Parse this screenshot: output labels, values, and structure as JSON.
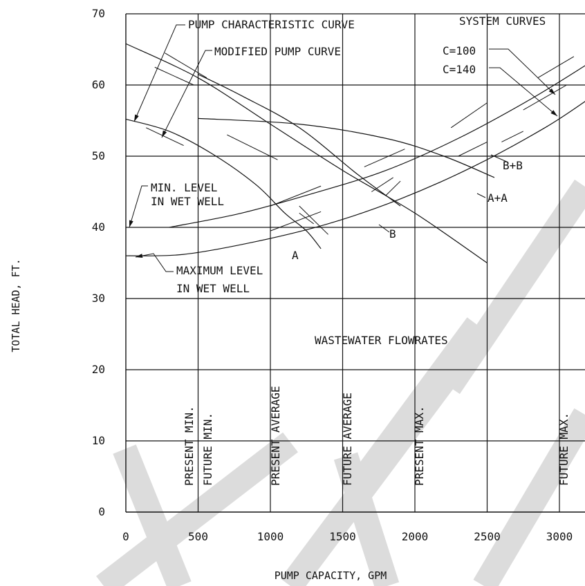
{
  "chart_data": {
    "type": "line",
    "xlabel": "PUMP CAPACITY,   GPM",
    "ylabel": "TOTAL HEAD,   FT.",
    "xlim": [
      0,
      3200
    ],
    "ylim": [
      0,
      70
    ],
    "x_ticks": [
      "0",
      "500",
      "1000",
      "1500",
      "2000",
      "2500",
      "3000"
    ],
    "y_ticks": [
      "0",
      "10",
      "20",
      "30",
      "40",
      "50",
      "60",
      "70"
    ],
    "grid": true,
    "series": [
      {
        "name": "A",
        "x": [
          0,
          300,
          600,
          900,
          1100,
          1250,
          1350
        ],
        "y": [
          55.2,
          53.5,
          50.3,
          46,
          42,
          39.5,
          37
        ]
      },
      {
        "name": "A+A",
        "x": [
          0,
          500,
          1000,
          1500,
          2000,
          2500
        ],
        "y": [
          65.8,
          61,
          54.5,
          48,
          42,
          35
        ]
      },
      {
        "name": "B",
        "x": [
          500,
          800,
          1200,
          1600,
          1900
        ],
        "y": [
          61.5,
          58.5,
          54,
          47.5,
          43
        ]
      },
      {
        "name": "B+B",
        "x": [
          500,
          1200,
          1800,
          2200,
          2550
        ],
        "y": [
          55.3,
          54.5,
          52.5,
          50,
          47
        ]
      },
      {
        "name": "C=100",
        "x": [
          300,
          800,
          1300,
          1800,
          2300,
          2800,
          3200
        ],
        "y": [
          40,
          42,
          44.8,
          48,
          52.5,
          58,
          63
        ]
      },
      {
        "name": "C=140",
        "x": [
          0,
          400,
          900,
          1400,
          1900,
          2400,
          2900,
          3200
        ],
        "y": [
          36,
          36.2,
          38,
          40.5,
          44,
          48.5,
          54,
          58
        ]
      }
    ],
    "annotations": [
      "PUMP CHARACTERISTIC CURVE",
      "MODIFIED PUMP CURVE",
      "SYSTEM CURVES",
      "MIN. LEVEL",
      "IN WET WELL",
      "MAXIMUM LEVEL",
      "IN WET WELL",
      "WASTEWATER FLOWRATES"
    ],
    "flowrate_lines": [
      {
        "x": 1000,
        "label": "PRESENT AVERAGE"
      },
      {
        "x": 1500,
        "label": "FUTURE AVERAGE"
      },
      {
        "x": 2000,
        "label": "PRESENT MAX."
      },
      {
        "x": 3000,
        "label": "FUTURE MAX."
      }
    ],
    "flowrate_labels_extra": [
      "PRESENT MIN.",
      "FUTURE MIN."
    ],
    "curve_labels": [
      "A",
      "A+A",
      "B",
      "B+B",
      "C=100",
      "C=140"
    ]
  }
}
